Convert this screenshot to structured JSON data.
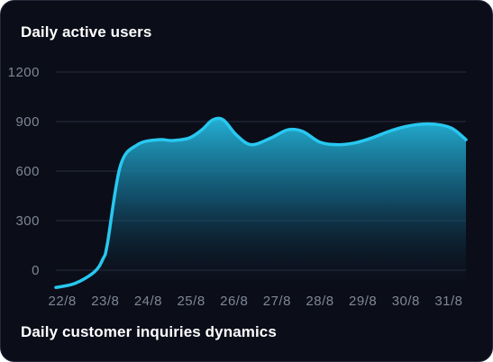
{
  "widget": {
    "title": "Daily active users",
    "subtitle": "Daily customer inquiries dynamics"
  },
  "colors": {
    "background": "#0b0d18",
    "line": "#27c8f0",
    "grid": "#2a3042",
    "tick_text": "#7f8696"
  },
  "chart_data": {
    "type": "area",
    "title": "Daily active users",
    "xlabel": "",
    "ylabel": "",
    "categories": [
      "22/8",
      "23/8",
      "24/8",
      "25/8",
      "26/8",
      "27/8",
      "28/8",
      "29/8",
      "30/8",
      "31/8"
    ],
    "x_range": [
      21.85,
      31.4
    ],
    "y_ticks": [
      0,
      300,
      600,
      900,
      1200
    ],
    "y_tick_labels": [
      "0",
      "300",
      "600",
      "900",
      "1200"
    ],
    "ylim": [
      0,
      1200
    ],
    "grid": true,
    "legend": "none",
    "series": [
      {
        "x": [
          21.85,
          22.3,
          22.75,
          22.95,
          23.05,
          23.35,
          23.75,
          24.25,
          24.55,
          24.95,
          25.25,
          25.5,
          25.75,
          26.05,
          26.4,
          26.85,
          27.25,
          27.6,
          28.0,
          28.4,
          28.8,
          29.2,
          29.6,
          30.0,
          30.4,
          30.8,
          31.1,
          31.4
        ],
        "y": [
          -105,
          -80,
          -10,
          70,
          160,
          630,
          760,
          790,
          785,
          800,
          850,
          910,
          910,
          820,
          760,
          800,
          850,
          840,
          775,
          760,
          770,
          800,
          840,
          870,
          885,
          880,
          855,
          790
        ]
      }
    ]
  }
}
